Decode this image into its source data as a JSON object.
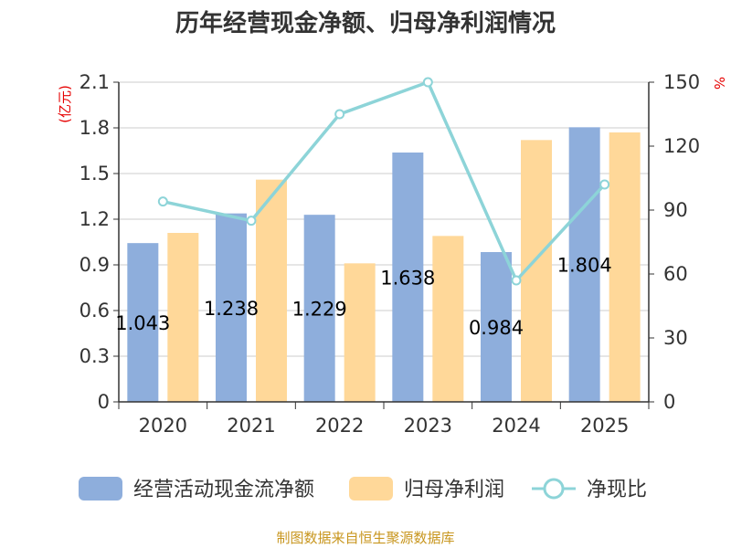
{
  "chart_data": {
    "type": "bar",
    "title": "历年经营现金净额、归母净利润情况",
    "categories": [
      "2020",
      "2021",
      "2022",
      "2023",
      "2024",
      "2025"
    ],
    "series": [
      {
        "name": "经营活动现金流净额",
        "type": "bar",
        "axis": "left",
        "values": [
          1.043,
          1.238,
          1.229,
          1.638,
          0.984,
          1.804
        ],
        "labels": [
          "1.043",
          "1.238",
          "1.229",
          "1.638",
          "0.984",
          "1.804"
        ],
        "color": "#8eaedc"
      },
      {
        "name": "归母净利润",
        "type": "bar",
        "axis": "left",
        "values": [
          1.11,
          1.46,
          0.91,
          1.09,
          1.72,
          1.77
        ],
        "color": "#ffd899"
      },
      {
        "name": "净现比",
        "type": "line",
        "axis": "right",
        "values": [
          94,
          85,
          135,
          150,
          57,
          102
        ],
        "color": "#8dd4d8"
      }
    ],
    "y_left": {
      "label": "(亿元)",
      "min": 0,
      "max": 2.1,
      "ticks": [
        "0",
        "0.3",
        "0.6",
        "0.9",
        "1.2",
        "1.5",
        "1.8",
        "2.1"
      ]
    },
    "y_right": {
      "label": "%",
      "min": 0,
      "max": 150,
      "ticks": [
        "0",
        "30",
        "60",
        "90",
        "120",
        "150"
      ]
    },
    "legend_position": "bottom",
    "grid": true,
    "source": "制图数据来自恒生聚源数据库"
  }
}
